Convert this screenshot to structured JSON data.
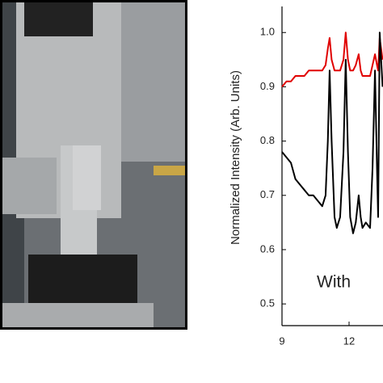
{
  "chart_data": {
    "type": "line",
    "y_label": "Normalized Intensity (Arb. Units)",
    "annotation": "With",
    "x": [
      9,
      9.2,
      9.4,
      9.6,
      9.8,
      10,
      10.2,
      10.4,
      10.6,
      10.8,
      10.95,
      11.05,
      11.13,
      11.22,
      11.35,
      11.45,
      11.6,
      11.75,
      11.85,
      11.95,
      12.05,
      12.18,
      12.3,
      12.43,
      12.52,
      12.6,
      12.75,
      12.94,
      13.05,
      13.16,
      13.25,
      13.3,
      13.37,
      13.5
    ],
    "series": [
      {
        "color": "#e00000",
        "values": [
          0.9,
          0.91,
          0.91,
          0.92,
          0.92,
          0.92,
          0.93,
          0.93,
          0.93,
          0.93,
          0.94,
          0.97,
          0.99,
          0.95,
          0.93,
          0.93,
          0.93,
          0.95,
          1.0,
          0.95,
          0.93,
          0.93,
          0.94,
          0.96,
          0.93,
          0.92,
          0.92,
          0.92,
          0.94,
          0.96,
          0.94,
          0.93,
          0.99,
          0.95
        ]
      },
      {
        "color": "#000000",
        "values": [
          0.78,
          0.77,
          0.76,
          0.73,
          0.72,
          0.71,
          0.7,
          0.7,
          0.69,
          0.68,
          0.7,
          0.8,
          0.93,
          0.8,
          0.66,
          0.64,
          0.66,
          0.78,
          0.95,
          0.78,
          0.66,
          0.63,
          0.65,
          0.7,
          0.66,
          0.64,
          0.65,
          0.64,
          0.75,
          0.93,
          0.75,
          0.66,
          1.0,
          0.9
        ]
      }
    ],
    "xlim": [
      9,
      13.5
    ],
    "ylim": [
      0.46,
      1.048
    ],
    "xticks": [
      9,
      12
    ],
    "yticks": [
      0.5,
      0.6,
      0.7,
      0.8,
      0.9,
      {
        "value": 1,
        "label": "1.0"
      }
    ]
  }
}
